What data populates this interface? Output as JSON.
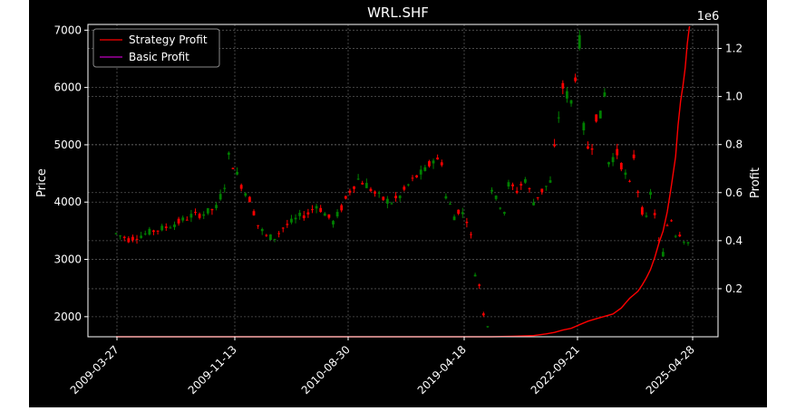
{
  "chart_data": {
    "type": "candlestick+line",
    "title": "WRL.SHF",
    "ylabel_left": "Price",
    "ylabel_right": "Profit",
    "right_axis_multiplier": "1e6",
    "x_ticks": [
      "2009-03-27",
      "2009-11-13",
      "2010-08-30",
      "2019-04-18",
      "2022-09-21",
      "2025-04-28"
    ],
    "y_left_ticks": [
      2000,
      3000,
      4000,
      5000,
      6000,
      7000
    ],
    "y_left_range": [
      1650,
      7100
    ],
    "y_right_ticks": [
      "0.2",
      "0.4",
      "0.6",
      "0.8",
      "1.0",
      "1.2"
    ],
    "y_right_range": [
      0.0,
      1.3
    ],
    "grid": true,
    "legend_position": "top-left",
    "legend": [
      {
        "name": "Strategy Profit",
        "color": "#ff0000"
      },
      {
        "name": "Basic Profit",
        "color": "#c000c0"
      }
    ],
    "up_color": "#008000",
    "down_color": "#ff0000",
    "price_path": [
      [
        0,
        3450
      ],
      [
        3,
        3350
      ],
      [
        6,
        3420
      ],
      [
        9,
        3500
      ],
      [
        12,
        3560
      ],
      [
        15,
        3650
      ],
      [
        18,
        3760
      ],
      [
        21,
        3800
      ],
      [
        24,
        3900
      ],
      [
        26,
        4300
      ],
      [
        27,
        4800
      ],
      [
        28,
        4650
      ],
      [
        30,
        4300
      ],
      [
        32,
        4050
      ],
      [
        34,
        3600
      ],
      [
        36,
        3400
      ],
      [
        38,
        3380
      ],
      [
        40,
        3550
      ],
      [
        42,
        3650
      ],
      [
        44,
        3750
      ],
      [
        46,
        3800
      ],
      [
        48,
        3950
      ],
      [
        50,
        3800
      ],
      [
        52,
        3650
      ],
      [
        54,
        3900
      ],
      [
        56,
        4200
      ],
      [
        58,
        4400
      ],
      [
        60,
        4300
      ],
      [
        62,
        4150
      ],
      [
        64,
        4050
      ],
      [
        66,
        4000
      ],
      [
        68,
        4100
      ],
      [
        70,
        4300
      ],
      [
        72,
        4450
      ],
      [
        74,
        4550
      ],
      [
        76,
        4750
      ],
      [
        78,
        4700
      ],
      [
        79,
        4100
      ],
      [
        80,
        3950
      ],
      [
        81,
        3750
      ],
      [
        82,
        3850
      ],
      [
        83,
        3800
      ],
      [
        84,
        3700
      ],
      [
        85,
        3400
      ],
      [
        86,
        2750
      ],
      [
        87,
        2550
      ],
      [
        88,
        2050
      ],
      [
        89,
        1850
      ],
      [
        90,
        4250
      ],
      [
        91,
        4050
      ],
      [
        92,
        3950
      ],
      [
        93,
        3850
      ],
      [
        94,
        4300
      ],
      [
        96,
        4200
      ],
      [
        98,
        4400
      ],
      [
        100,
        4000
      ],
      [
        102,
        4200
      ],
      [
        104,
        4350
      ],
      [
        106,
        5500
      ],
      [
        107,
        6000
      ],
      [
        109,
        5750
      ],
      [
        110,
        6200
      ],
      [
        111,
        6800
      ],
      [
        112,
        5300
      ],
      [
        113,
        4950
      ],
      [
        114,
        5000
      ],
      [
        115,
        5500
      ],
      [
        116,
        5500
      ],
      [
        117,
        5900
      ],
      [
        118,
        4700
      ],
      [
        120,
        4850
      ],
      [
        121,
        4650
      ],
      [
        123,
        4300
      ],
      [
        124,
        4800
      ],
      [
        125,
        4200
      ],
      [
        126,
        3850
      ],
      [
        127,
        3700
      ],
      [
        128,
        4150
      ],
      [
        129,
        3800
      ],
      [
        130,
        3300
      ],
      [
        131,
        3100
      ],
      [
        132,
        3600
      ],
      [
        133,
        3700
      ],
      [
        134,
        3450
      ],
      [
        135,
        3450
      ],
      [
        136,
        3350
      ],
      [
        137,
        3300
      ]
    ],
    "strategy_profit": [
      [
        0,
        0.0
      ],
      [
        90,
        0.0
      ],
      [
        95,
        0.002
      ],
      [
        100,
        0.005
      ],
      [
        103,
        0.012
      ],
      [
        105,
        0.018
      ],
      [
        107,
        0.028
      ],
      [
        109,
        0.035
      ],
      [
        111,
        0.05
      ],
      [
        113,
        0.065
      ],
      [
        115,
        0.075
      ],
      [
        117,
        0.085
      ],
      [
        119,
        0.095
      ],
      [
        121,
        0.12
      ],
      [
        122,
        0.14
      ],
      [
        123,
        0.16
      ],
      [
        124,
        0.175
      ],
      [
        125,
        0.19
      ],
      [
        126,
        0.215
      ],
      [
        127,
        0.245
      ],
      [
        128,
        0.28
      ],
      [
        129,
        0.33
      ],
      [
        130,
        0.39
      ],
      [
        131,
        0.44
      ],
      [
        132,
        0.52
      ],
      [
        133,
        0.63
      ],
      [
        134,
        0.75
      ],
      [
        134.6,
        0.88
      ],
      [
        135.2,
        0.98
      ],
      [
        135.8,
        1.05
      ],
      [
        136.3,
        1.12
      ],
      [
        136.8,
        1.22
      ],
      [
        137.3,
        1.29
      ],
      [
        137.5,
        1.29
      ]
    ]
  }
}
